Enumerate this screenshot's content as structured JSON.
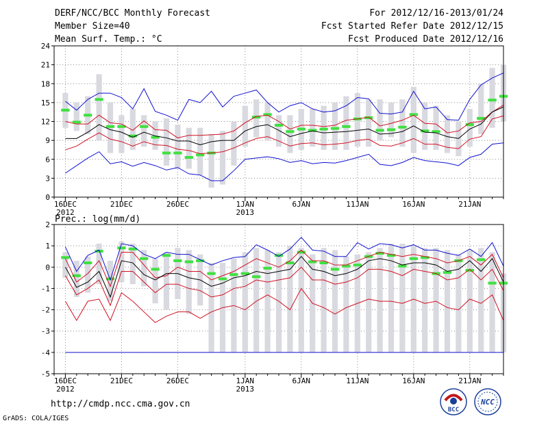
{
  "header": {
    "title": "DERF/NCC/BCC Monthly Forecast",
    "member_size": "Member Size=40",
    "variable": "Mean Surf. Temp.: °C",
    "period": "For 2012/12/16-2013/01/24",
    "started": "Fcst Started Refer Date 2012/12/15",
    "produced": "Fcst Produced Date 2012/12/16"
  },
  "footer": {
    "url": "http://cmdp.ncc.cma.gov.cn",
    "credit": "GrADS: COLA/IGES",
    "logo_bcc": "BCC",
    "logo_ncc": "NCC"
  },
  "colors": {
    "box": "#d9d9e0",
    "ensemble_mean": "#000000",
    "spread": "#d01020",
    "extreme": "#1010d0",
    "observed": "#40e040",
    "grid": "#888888"
  },
  "chart_data": [
    {
      "type": "line",
      "title": "Mean Surf. Temp.: °C",
      "xlabel": "",
      "ylabel": "°C",
      "ylim": [
        0,
        24
      ],
      "yticks": [
        0,
        3,
        6,
        9,
        12,
        15,
        18,
        21,
        24
      ],
      "ytick_labels": [
        "0",
        "3",
        "6",
        "9",
        "12",
        "15",
        "18",
        "21",
        "24"
      ],
      "x_tick_days": [
        0,
        5,
        10,
        16,
        21,
        26,
        31,
        36
      ],
      "x_tick_labels": [
        "16DEC",
        "21DEC",
        "26DEC",
        "1JAN",
        "6JAN",
        "11JAN",
        "16JAN",
        "21JAN"
      ],
      "x_sub_labels": [
        {
          "day": 0,
          "text": "2012"
        },
        {
          "day": 16,
          "text": "2013"
        }
      ],
      "x_range": [
        -1,
        39
      ],
      "days": [
        0,
        1,
        2,
        3,
        4,
        5,
        6,
        7,
        8,
        9,
        10,
        11,
        12,
        13,
        14,
        15,
        16,
        17,
        18,
        19,
        20,
        21,
        22,
        23,
        24,
        25,
        26,
        27,
        28,
        29,
        30,
        31,
        32,
        33,
        34,
        35,
        36,
        37,
        38,
        39
      ],
      "box_low": [
        11.0,
        10.5,
        10.0,
        9.0,
        7.0,
        7.0,
        7.5,
        8.0,
        7.5,
        5.0,
        4.5,
        4.5,
        3.5,
        1.5,
        2.0,
        5.0,
        8.0,
        9.5,
        9.0,
        8.0,
        7.0,
        7.5,
        8.0,
        7.5,
        7.5,
        7.5,
        8.0,
        8.0,
        9.0,
        9.5,
        8.0,
        7.0,
        7.5,
        7.5,
        7.0,
        6.5,
        8.0,
        10.0,
        11.0,
        12.0
      ],
      "box_high": [
        16.5,
        15.0,
        16.0,
        19.5,
        15.0,
        13.0,
        14.0,
        13.0,
        12.0,
        12.5,
        11.5,
        11.0,
        11.0,
        10.0,
        10.5,
        12.0,
        14.5,
        15.5,
        15.0,
        13.0,
        13.0,
        14.0,
        14.0,
        14.5,
        15.0,
        16.0,
        16.5,
        15.5,
        15.5,
        15.0,
        15.5,
        17.5,
        15.0,
        14.5,
        13.0,
        12.0,
        14.0,
        18.0,
        20.5,
        21.0
      ],
      "series": [
        {
          "name": "max",
          "color": "#1010d0",
          "values": [
            15.2,
            13.8,
            15.5,
            16.5,
            16.5,
            15.8,
            14.0,
            17.2,
            13.6,
            13.0,
            12.2,
            15.5,
            15.0,
            16.8,
            14.3,
            16.0,
            16.5,
            17.0,
            15.0,
            13.5,
            14.5,
            15.0,
            14.0,
            13.5,
            13.7,
            14.5,
            15.8,
            15.6,
            13.3,
            13.2,
            13.5,
            16.8,
            14.0,
            14.3,
            12.3,
            12.2,
            15.5,
            17.8,
            18.9,
            19.7
          ]
        },
        {
          "name": "upper",
          "color": "#d01020",
          "values": [
            12.0,
            11.6,
            11.6,
            13.0,
            11.8,
            11.6,
            10.6,
            12.1,
            10.7,
            10.6,
            9.4,
            9.8,
            9.8,
            9.9,
            10.0,
            10.5,
            11.8,
            12.8,
            13.0,
            12.0,
            10.8,
            11.4,
            11.4,
            11.2,
            11.4,
            12.2,
            12.4,
            12.7,
            11.3,
            11.7,
            12.2,
            13.0,
            11.7,
            11.6,
            10.2,
            10.5,
            11.8,
            12.0,
            13.5,
            14.6
          ]
        },
        {
          "name": "mean",
          "color": "#000000",
          "values": [
            9.3,
            9.3,
            10.3,
            11.5,
            10.7,
            10.3,
            9.5,
            10.3,
            9.7,
            9.4,
            8.9,
            8.9,
            8.3,
            8.8,
            9.0,
            9.0,
            10.5,
            11.2,
            11.5,
            10.6,
            9.6,
            10.1,
            10.5,
            10.2,
            10.3,
            10.4,
            10.6,
            10.8,
            10.0,
            10.1,
            10.4,
            11.3,
            10.3,
            10.2,
            9.6,
            9.3,
            10.8,
            11.6,
            13.5,
            14.3
          ]
        },
        {
          "name": "lower",
          "color": "#d01020",
          "values": [
            7.5,
            8.1,
            9.2,
            10.2,
            9.2,
            8.8,
            8.1,
            8.8,
            8.3,
            8.2,
            7.6,
            7.4,
            6.9,
            7.0,
            7.2,
            7.8,
            8.6,
            9.3,
            9.6,
            8.9,
            8.1,
            8.5,
            8.6,
            8.3,
            8.4,
            8.6,
            9.0,
            9.2,
            8.2,
            8.1,
            8.6,
            9.3,
            8.4,
            8.4,
            7.9,
            7.7,
            9.2,
            9.6,
            12.4,
            12.9
          ]
        },
        {
          "name": "min",
          "color": "#1010d0",
          "values": [
            3.8,
            5.0,
            6.2,
            7.2,
            5.3,
            5.6,
            4.9,
            5.5,
            5.0,
            4.3,
            4.7,
            3.7,
            3.5,
            2.6,
            2.6,
            4.2,
            6.0,
            6.2,
            6.4,
            6.1,
            5.5,
            5.8,
            5.3,
            5.5,
            5.4,
            5.8,
            6.3,
            6.8,
            5.2,
            5.0,
            5.5,
            6.3,
            5.8,
            5.6,
            5.4,
            5.0,
            6.3,
            6.8,
            8.4,
            8.6
          ]
        }
      ],
      "observed": {
        "name": "observed",
        "color": "#40e040",
        "values": [
          13.8,
          11.9,
          13.0,
          15.5,
          11.2,
          11.2,
          9.7,
          11.2,
          9.5,
          7.0,
          7.0,
          6.3,
          6.7,
          7.0,
          null,
          null,
          null,
          12.7,
          13.1,
          11.4,
          10.4,
          10.8,
          10.6,
          10.8,
          10.9,
          11.2,
          12.4,
          12.6,
          10.6,
          10.7,
          11.1,
          13.1,
          10.5,
          10.4,
          null,
          null,
          11.5,
          12.5,
          15.4,
          16.0
        ]
      }
    },
    {
      "type": "line",
      "title": "Prec.: log(mm/d)",
      "xlabel": "",
      "ylabel": "log(mm/d)",
      "ylim": [
        -5,
        2
      ],
      "yticks": [
        -5,
        -4,
        -3,
        -2,
        -1,
        0,
        1,
        2
      ],
      "ytick_labels": [
        "-5",
        "-4",
        "-3",
        "-2",
        "-1",
        "0",
        "1",
        "2"
      ],
      "x_tick_days": [
        0,
        5,
        10,
        16,
        21,
        26,
        31,
        36
      ],
      "x_tick_labels": [
        "16DEC",
        "21DEC",
        "26DEC",
        "1JAN",
        "6JAN",
        "11JAN",
        "16JAN",
        "21JAN"
      ],
      "x_sub_labels": [
        {
          "day": 0,
          "text": "2012"
        },
        {
          "day": 16,
          "text": "2013"
        }
      ],
      "x_range": [
        -1,
        39
      ],
      "days": [
        0,
        1,
        2,
        3,
        4,
        5,
        6,
        7,
        8,
        9,
        10,
        11,
        12,
        13,
        14,
        15,
        16,
        17,
        18,
        19,
        20,
        21,
        22,
        23,
        24,
        25,
        26,
        27,
        28,
        29,
        30,
        31,
        32,
        33,
        34,
        35,
        36,
        37,
        38,
        39
      ],
      "box_low": [
        -0.5,
        -1.4,
        -1.2,
        -0.8,
        -1.6,
        -0.7,
        -0.8,
        -0.9,
        -1.7,
        -2.0,
        -1.5,
        -2.2,
        -1.8,
        -4.0,
        -4.0,
        -4.0,
        -4.0,
        -4.0,
        -4.0,
        -4.0,
        -4.0,
        -4.0,
        -4.0,
        -4.0,
        -4.0,
        -4.0,
        -4.0,
        -4.0,
        -4.0,
        -4.0,
        -4.0,
        -4.0,
        -4.0,
        -4.0,
        -4.0,
        -4.0,
        -4.0,
        -4.0,
        -4.0,
        -4.0
      ],
      "box_high": [
        0.7,
        0.3,
        0.5,
        1.1,
        0.3,
        1.2,
        1.1,
        0.8,
        0.4,
        0.7,
        0.9,
        0.8,
        0.6,
        0.2,
        0.2,
        0.4,
        0.7,
        0.9,
        0.8,
        0.7,
        1.0,
        0.9,
        0.6,
        0.9,
        0.8,
        0.5,
        0.6,
        0.7,
        0.9,
        1.1,
        1.1,
        1.0,
        0.9,
        0.9,
        0.8,
        0.6,
        0.8,
        0.9,
        0.7,
        -0.3
      ],
      "series": [
        {
          "name": "max",
          "color": "#1010d0",
          "values": [
            0.95,
            -0.2,
            0.55,
            0.8,
            -0.6,
            1.1,
            1.0,
            0.6,
            0.4,
            0.7,
            0.6,
            0.6,
            0.35,
            0.1,
            0.3,
            0.45,
            0.5,
            1.05,
            0.8,
            0.5,
            0.85,
            1.4,
            0.8,
            0.75,
            0.5,
            0.5,
            1.15,
            0.85,
            1.1,
            1.05,
            0.9,
            1.05,
            0.8,
            0.8,
            0.65,
            0.55,
            0.85,
            0.5,
            1.15,
            0.05
          ]
        },
        {
          "name": "upper",
          "color": "#d01020",
          "values": [
            0.4,
            -0.7,
            -0.3,
            0.3,
            -0.9,
            0.7,
            0.7,
            0.1,
            -0.5,
            -0.4,
            0.0,
            -0.2,
            -0.2,
            -0.6,
            -0.4,
            -0.2,
            0.1,
            0.4,
            0.2,
            0.0,
            0.3,
            0.8,
            0.3,
            0.3,
            0.1,
            0.1,
            0.3,
            0.5,
            0.7,
            0.6,
            0.5,
            0.6,
            0.5,
            0.4,
            0.2,
            0.3,
            0.5,
            0.1,
            0.6,
            -0.5
          ]
        },
        {
          "name": "mean",
          "color": "#000000",
          "values": [
            0.0,
            -0.95,
            -0.7,
            -0.2,
            -1.4,
            0.3,
            0.2,
            -0.35,
            -0.6,
            -0.3,
            -0.3,
            -0.5,
            -0.6,
            -0.9,
            -0.75,
            -0.5,
            -0.4,
            -0.2,
            -0.3,
            -0.2,
            -0.1,
            0.5,
            -0.1,
            -0.2,
            -0.4,
            -0.3,
            -0.1,
            0.3,
            0.4,
            0.3,
            0.1,
            0.2,
            0.2,
            0.1,
            -0.2,
            -0.1,
            0.3,
            -0.2,
            0.4,
            -0.7
          ]
        },
        {
          "name": "lower",
          "color": "#d01020",
          "values": [
            -0.4,
            -1.3,
            -1.0,
            -0.6,
            -1.8,
            -0.2,
            -0.2,
            -0.7,
            -1.2,
            -0.8,
            -0.8,
            -1.0,
            -1.1,
            -1.4,
            -1.3,
            -1.0,
            -0.9,
            -0.6,
            -0.7,
            -0.6,
            -0.5,
            0.0,
            -0.6,
            -0.6,
            -0.8,
            -0.7,
            -0.5,
            -0.1,
            -0.1,
            -0.2,
            -0.4,
            -0.1,
            -0.2,
            -0.3,
            -0.6,
            -0.5,
            -0.1,
            -0.6,
            -0.1,
            -1.1
          ]
        },
        {
          "name": "min",
          "color": "#d01020",
          "values": [
            -1.6,
            -2.5,
            -1.6,
            -1.5,
            -2.5,
            -1.2,
            -1.6,
            -2.1,
            -2.6,
            -2.3,
            -2.1,
            -2.1,
            -2.4,
            -2.1,
            -1.9,
            -1.8,
            -2.0,
            -1.6,
            -1.3,
            -1.6,
            -2.0,
            -1.0,
            -1.7,
            -1.9,
            -2.2,
            -1.9,
            -1.7,
            -1.5,
            -1.6,
            -1.6,
            -1.7,
            -1.5,
            -1.7,
            -1.6,
            -1.9,
            -2.0,
            -1.5,
            -1.7,
            -1.3,
            -2.5
          ]
        },
        {
          "name": "floor",
          "color": "#1010d0",
          "values": [
            -4,
            -4,
            -4,
            -4,
            -4,
            -4,
            -4,
            -4,
            -4,
            -4,
            -4,
            -4,
            -4,
            -4,
            -4,
            -4,
            -4,
            -4,
            -4,
            -4,
            -4,
            -4,
            -4,
            -4,
            -4,
            -4,
            -4,
            -4,
            -4,
            -4,
            -4,
            -4,
            -4,
            -4,
            -4,
            -4,
            -4,
            -4,
            -4,
            -4
          ]
        }
      ],
      "observed": {
        "name": "observed",
        "color": "#40e040",
        "values": [
          0.45,
          -0.4,
          0.2,
          0.75,
          -0.55,
          0.9,
          0.85,
          0.4,
          -0.1,
          0.55,
          0.3,
          0.25,
          0.3,
          -0.3,
          -0.55,
          -0.35,
          -0.3,
          -0.45,
          -0.05,
          0.55,
          0.2,
          0.7,
          0.25,
          0.2,
          -0.1,
          0.05,
          0.1,
          0.5,
          0.65,
          0.55,
          0.05,
          0.4,
          0.45,
          -0.3,
          -0.25,
          0.3,
          -0.15,
          0.35,
          -0.75,
          -0.75
        ]
      }
    }
  ]
}
